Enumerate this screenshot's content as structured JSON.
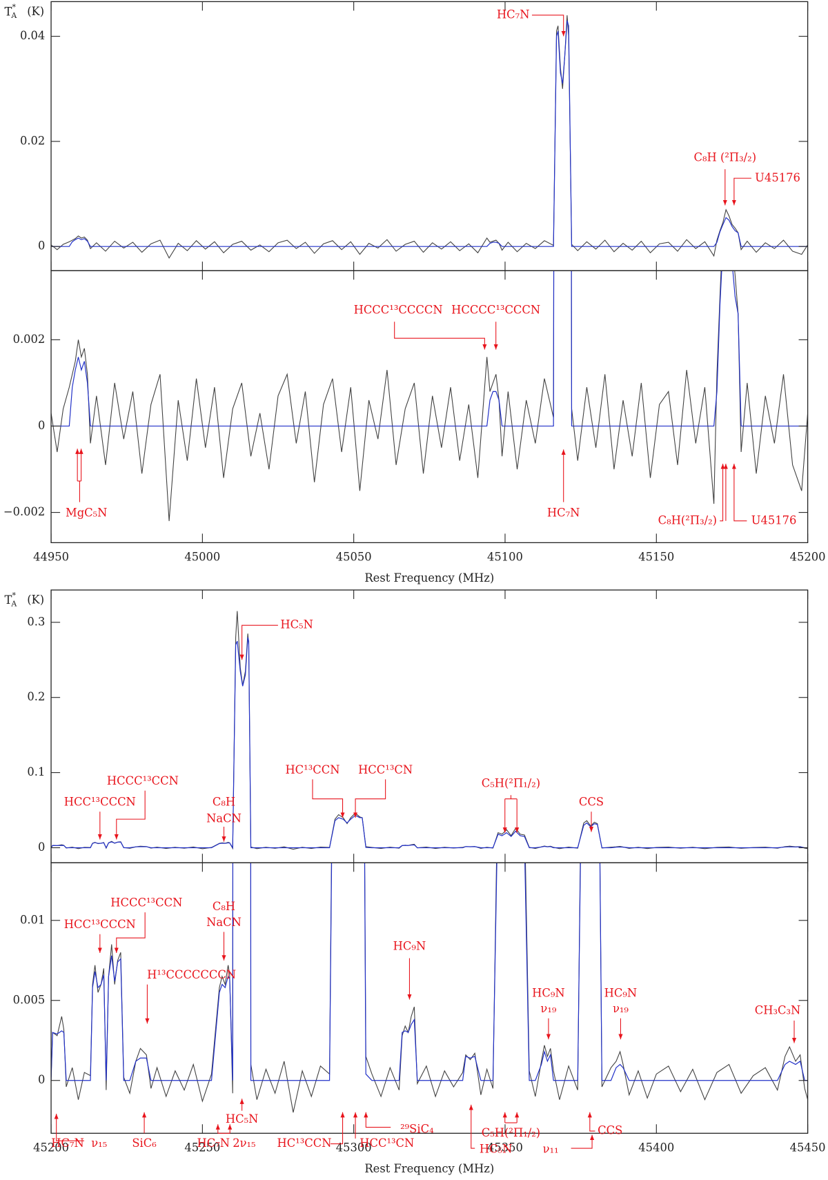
{
  "chart_data": [
    {
      "type": "line",
      "xlabel": "Rest Frequency (MHz)",
      "annotation_color": "#e8141c",
      "xlim": [
        44950,
        45200
      ],
      "xticks": [
        44950,
        45000,
        45050,
        45100,
        45150,
        45200
      ],
      "x": [
        44950,
        44952,
        44954,
        44956,
        44957,
        44958,
        44959,
        44960,
        44961,
        44962,
        44963,
        44965,
        44968,
        44971,
        44974,
        44977,
        44980,
        44983,
        44986,
        44989,
        44992,
        44995,
        44998,
        45001,
        45004,
        45007,
        45010,
        45013,
        45016,
        45019,
        45022,
        45025,
        45028,
        45031,
        45034,
        45037,
        45040,
        45043,
        45046,
        45049,
        45052,
        45055,
        45058,
        45061,
        45064,
        45067,
        45070,
        45073,
        45076,
        45079,
        45082,
        45085,
        45088,
        45091,
        45094,
        45095,
        45096,
        45097,
        45098,
        45099,
        45101,
        45104,
        45107,
        45110,
        45113,
        45116,
        45117,
        45117.5,
        45118.3,
        45119,
        45119.7,
        45120.5,
        45121,
        45122,
        45124,
        45127,
        45130,
        45133,
        45136,
        45139,
        45142,
        45145,
        45148,
        45151,
        45154,
        45157,
        45160,
        45163,
        45166,
        45169,
        45170,
        45171,
        45172,
        45173,
        45174,
        45175,
        45176,
        45177,
        45178,
        45180,
        45183,
        45186,
        45189,
        45192,
        45195,
        45198,
        45200
      ],
      "series": [
        {
          "color": "#404040",
          "values": [
            0.0003,
            -0.0006,
            0.0004,
            0.0009,
            0.0012,
            0.0015,
            0.002,
            0.0016,
            0.0018,
            0.0012,
            -0.0004,
            0.0007,
            -0.0009,
            0.001,
            -0.0003,
            0.0008,
            -0.0011,
            0.0005,
            0.0012,
            -0.0022,
            0.0006,
            -0.0008,
            0.0011,
            -0.0005,
            0.0009,
            -0.0012,
            0.0004,
            0.001,
            -0.0007,
            0.0003,
            -0.001,
            0.0007,
            0.0012,
            -0.0004,
            0.0008,
            -0.0013,
            0.0005,
            0.0011,
            -0.0006,
            0.0009,
            -0.0015,
            0.0006,
            -0.0003,
            0.0013,
            -0.0009,
            0.0004,
            0.001,
            -0.0011,
            0.0007,
            -0.0005,
            0.0009,
            -0.0008,
            0.0005,
            -0.0012,
            0.0016,
            0.0008,
            0.001,
            0.0012,
            0.0006,
            -0.0007,
            0.0008,
            -0.001,
            0.0006,
            -0.0004,
            0.0011,
            0.0002,
            0.041,
            0.042,
            0.034,
            0.03,
            0.036,
            0.044,
            0.04,
            0.0004,
            -0.0008,
            0.0009,
            -0.0005,
            0.0012,
            -0.001,
            0.0006,
            -0.0007,
            0.001,
            -0.0012,
            0.0005,
            0.0008,
            -0.0009,
            0.0013,
            -0.0004,
            0.0009,
            -0.0018,
            0.0012,
            0.003,
            0.0046,
            0.007,
            0.0058,
            0.0042,
            0.0035,
            0.0026,
            -0.0006,
            0.001,
            -0.0011,
            0.0007,
            -0.0004,
            0.0012,
            -0.0009,
            -0.0015,
            0.0003
          ]
        },
        {
          "color": "#2130c8",
          "values": [
            0,
            0,
            0,
            0,
            0.0009,
            0.0013,
            0.0016,
            0.0013,
            0.0015,
            0.001,
            0,
            0,
            0,
            0,
            0,
            0,
            0,
            0,
            0,
            0,
            0,
            0,
            0,
            0,
            0,
            0,
            0,
            0,
            0,
            0,
            0,
            0,
            0,
            0,
            0,
            0,
            0,
            0,
            0,
            0,
            0,
            0,
            0,
            0,
            0,
            0,
            0,
            0,
            0,
            0,
            0,
            0,
            0,
            0,
            0,
            0.0006,
            0.0008,
            0.0008,
            0.0006,
            0,
            0,
            0,
            0,
            0,
            0,
            0,
            0.04,
            0.041,
            0.033,
            0.031,
            0.036,
            0.043,
            0.042,
            0,
            0,
            0,
            0,
            0,
            0,
            0,
            0,
            0,
            0,
            0,
            0,
            0,
            0,
            0,
            0,
            0,
            0.0008,
            0.0028,
            0.0042,
            0.0055,
            0.005,
            0.0038,
            0.003,
            0.0026,
            0,
            0,
            0,
            0,
            0,
            0,
            0,
            0,
            0
          ]
        }
      ],
      "panels": [
        {
          "ylabel": {
            "base": "T",
            "sup": "*",
            "sub": "A",
            "unit": "(K)"
          },
          "ylim": [
            -0.0046,
            0.0466
          ],
          "yticks": [
            0,
            0.02,
            0.04
          ],
          "annotations": [
            "HC₇N",
            "C₈H (²Π₃/₂)",
            "U45176"
          ]
        },
        {
          "ylim": [
            -0.0027,
            0.0036
          ],
          "yticks": [
            {
              "value": -0.002,
              "label": "−0.002"
            },
            0,
            0.002
          ],
          "annotations": [
            "HCCC¹³CCCCN",
            "HCCCC¹³CCCN",
            "MgC₅N",
            "HC₇N",
            "C₈H(²Π₃/₂)",
            "U45176"
          ]
        }
      ]
    },
    {
      "type": "line",
      "xlabel": "Rest Frequency (MHz)",
      "annotation_color": "#e8141c",
      "xlim": [
        45200,
        45450
      ],
      "xticks": [
        45200,
        45250,
        45300,
        45350,
        45400,
        45450
      ],
      "x": [
        45200,
        45200.5,
        45202,
        45203.5,
        45204.2,
        45205,
        45207,
        45209,
        45211,
        45213,
        45213.7,
        45214.5,
        45215.5,
        45216.5,
        45217.4,
        45218.2,
        45219,
        45220,
        45221,
        45222,
        45223,
        45224,
        45226,
        45228,
        45229.5,
        45231.5,
        45233,
        45235,
        45238,
        45241,
        45244,
        45247,
        45250,
        45253,
        45255.6,
        45256.5,
        45257.5,
        45258.5,
        45259,
        45260,
        45261,
        45261.5,
        45262.5,
        45263.3,
        45264.2,
        45265,
        45265.3,
        45266,
        45268,
        45271,
        45274,
        45277,
        45280,
        45283,
        45286,
        45289,
        45292,
        45293.8,
        45295,
        45296.5,
        45297.8,
        45299,
        45300.5,
        45302,
        45302.8,
        45304,
        45306,
        45309,
        45312,
        45315,
        45316,
        45317,
        45318,
        45319,
        45320,
        45321,
        45324,
        45327,
        45330,
        45333,
        45336,
        45337,
        45338.5,
        45340,
        45342,
        45344,
        45346,
        45347.7,
        45349,
        45350.5,
        45352,
        45353.5,
        45355,
        45356.4,
        45358,
        45360,
        45362,
        45363,
        45364,
        45365,
        45366,
        45368,
        45371,
        45374,
        45376,
        45377,
        45378.3,
        45379.5,
        45380.5,
        45382,
        45385,
        45386.7,
        45388,
        45389,
        45391,
        45394,
        45397,
        45400,
        45404,
        45408,
        45412,
        45416,
        45420,
        45424,
        45428,
        45432,
        45436,
        45440,
        45442.5,
        45444,
        45446,
        45447.5,
        45449,
        45450
      ],
      "series": [
        {
          "color": "#404040",
          "values": [
            0.0002,
            0.003,
            0.0028,
            0.004,
            0.0032,
            -0.0004,
            0.0008,
            -0.0012,
            0.0005,
            0.0003,
            0.006,
            0.0072,
            0.0055,
            0.006,
            0.007,
            -0.0006,
            0.0065,
            0.0085,
            0.006,
            0.0075,
            0.008,
            0.0002,
            -0.0008,
            0.0012,
            0.002,
            0.0016,
            -0.0005,
            0.0008,
            -0.001,
            0.0006,
            -0.0006,
            0.001,
            -0.0013,
            0.0004,
            0.0058,
            0.0065,
            0.006,
            0.0072,
            0.0066,
            -0.0008,
            0.28,
            0.315,
            0.24,
            0.216,
            0.235,
            0.285,
            0.27,
            0.001,
            -0.0012,
            0.0007,
            -0.0008,
            0.0012,
            -0.002,
            0.0006,
            -0.001,
            0.0009,
            0.0004,
            0.038,
            0.044,
            0.04,
            0.032,
            0.04,
            0.046,
            0.041,
            0.04,
            0.0015,
            0.0004,
            -0.001,
            0.0008,
            -0.0006,
            0.0028,
            0.0034,
            0.003,
            0.004,
            0.0046,
            -0.0002,
            0.0009,
            -0.001,
            0.0006,
            -0.0004,
            0.0005,
            0.0016,
            0.0013,
            0.0017,
            -0.0009,
            0.0007,
            -0.0005,
            0.02,
            0.018,
            0.024,
            0.016,
            0.026,
            0.018,
            0.017,
            0.0006,
            -0.001,
            0.0012,
            0.0022,
            0.0015,
            0.002,
            0.0006,
            -0.0012,
            0.0009,
            -0.0006,
            0.033,
            0.036,
            0.029,
            0.034,
            0.032,
            -0.0004,
            0.0008,
            0.0012,
            0.0018,
            0.001,
            -0.0009,
            0.0006,
            -0.0011,
            0.0004,
            0.0009,
            -0.0007,
            0.0007,
            -0.0012,
            0.0005,
            0.001,
            -0.0008,
            0.0003,
            0.0008,
            -0.0006,
            0.0015,
            0.0021,
            0.0012,
            0.0016,
            -0.0005,
            -0.0012
          ]
        },
        {
          "color": "#2130c8",
          "values": [
            0,
            0.003,
            0.0029,
            0.0031,
            0.003,
            0,
            0,
            0,
            0,
            0,
            0.0058,
            0.0068,
            0.0058,
            0.006,
            0.0066,
            0,
            0.0065,
            0.0078,
            0.0062,
            0.0074,
            0.0076,
            0,
            0,
            0.0012,
            0.0014,
            0.0014,
            0,
            0,
            0,
            0,
            0,
            0,
            0,
            0,
            0.0055,
            0.006,
            0.0058,
            0.0065,
            0.0064,
            0,
            0.27,
            0.275,
            0.235,
            0.215,
            0.23,
            0.28,
            0.275,
            0,
            0,
            0,
            0,
            0,
            0,
            0,
            0,
            0,
            0,
            0.036,
            0.04,
            0.038,
            0.033,
            0.038,
            0.043,
            0.04,
            0.04,
            0.0004,
            0,
            0,
            0,
            0,
            0.003,
            0.0031,
            0.003,
            0.0035,
            0.0038,
            0,
            0,
            0,
            0,
            0,
            0,
            0.0015,
            0.0014,
            0.0015,
            0,
            0,
            0,
            0.018,
            0.016,
            0.02,
            0.015,
            0.022,
            0.016,
            0.015,
            0,
            0,
            0.001,
            0.0018,
            0.0012,
            0.0016,
            0,
            0,
            0,
            0,
            0.03,
            0.033,
            0.028,
            0.032,
            0.031,
            0,
            0,
            0.0008,
            0.001,
            0.0008,
            0,
            0,
            0,
            0,
            0,
            0,
            0,
            0,
            0,
            0,
            0,
            0,
            0,
            0,
            0.001,
            0.0012,
            0.001,
            0.0012,
            0,
            0
          ]
        }
      ],
      "panels": [
        {
          "ylabel": {
            "base": "T",
            "sup": "*",
            "sub": "A",
            "unit": "(K)"
          },
          "ylim": [
            -0.02,
            0.343
          ],
          "yticks": [
            0,
            0.1,
            0.2,
            0.3
          ],
          "annotations": [
            "HC₅N",
            "HCC¹³CCCN",
            "HCCC¹³CCN",
            "C₈H",
            "NaCN",
            "HC¹³CCN",
            "HCC¹³CN",
            "C₅H(²Π₁/₂)",
            "CCS"
          ]
        },
        {
          "ylim": [
            -0.0033,
            0.0136
          ],
          "yticks": [
            0,
            0.005,
            0.01
          ],
          "annotations": [
            "HCC¹³CCCN",
            "HCCC¹³CCN",
            "H¹³CCCCCCCN",
            "C₈H",
            "NaCN",
            "HC₉N",
            "HC₉N",
            "ν₁₉",
            "HC₉N",
            "ν₁₉",
            "CH₃C₃N",
            "HC₇N",
            "ν₁₅",
            "SiC₆",
            "HC₇N",
            "2ν₁₅",
            "HC₅N",
            "HC¹³CCN",
            "HCC¹³CN",
            "²⁹SiC₄",
            "C₅H(²Π₁/₂)",
            "HC₅N",
            "ν₁₁",
            "CCS"
          ]
        }
      ]
    }
  ]
}
